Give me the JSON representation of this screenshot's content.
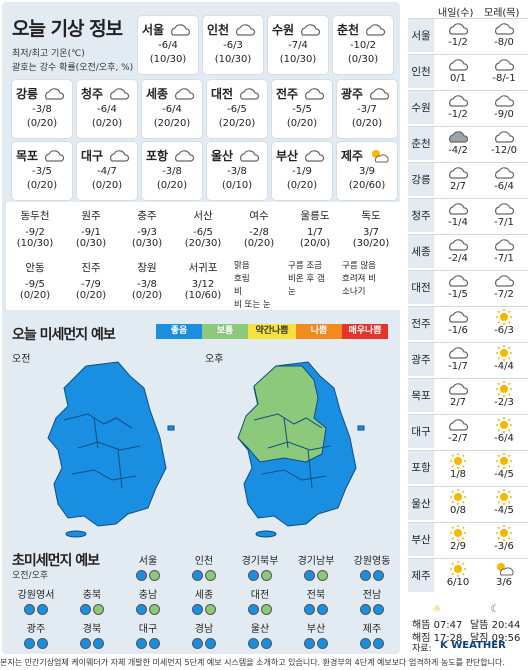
{
  "header": {
    "title": "오늘 기상 정보",
    "sub1": "최저/최고 기온(℃)",
    "sub2": "괄호는 강수 확률(오전/오후, %)"
  },
  "top_cities": [
    {
      "name": "서울",
      "temp": "-6/4",
      "pct": "(10/30)",
      "icon": "cloud"
    },
    {
      "name": "인천",
      "temp": "-6/3",
      "pct": "(10/30)",
      "icon": "cloud"
    },
    {
      "name": "수원",
      "temp": "-7/4",
      "pct": "(10/30)",
      "icon": "cloud"
    },
    {
      "name": "춘천",
      "temp": "-10/2",
      "pct": "(0/30)",
      "icon": "cloud"
    },
    {
      "name": "강릉",
      "temp": "-3/8",
      "pct": "(0/20)",
      "icon": "cloud"
    },
    {
      "name": "청주",
      "temp": "-6/4",
      "pct": "(0/20)",
      "icon": "cloud"
    },
    {
      "name": "세종",
      "temp": "-6/4",
      "pct": "(20/20)",
      "icon": "cloud"
    },
    {
      "name": "대전",
      "temp": "-6/5",
      "pct": "(20/20)",
      "icon": "cloud"
    },
    {
      "name": "전주",
      "temp": "-5/5",
      "pct": "(0/20)",
      "icon": "cloud"
    },
    {
      "name": "광주",
      "temp": "-3/7",
      "pct": "(0/20)",
      "icon": "cloud"
    },
    {
      "name": "목포",
      "temp": "-3/5",
      "pct": "(0/20)",
      "icon": "cloud"
    },
    {
      "name": "대구",
      "temp": "-4/7",
      "pct": "(0/20)",
      "icon": "cloud"
    },
    {
      "name": "포항",
      "temp": "-3/8",
      "pct": "(0/20)",
      "icon": "cloud"
    },
    {
      "name": "울산",
      "temp": "-3/8",
      "pct": "(0/10)",
      "icon": "cloud"
    },
    {
      "name": "부산",
      "temp": "-1/9",
      "pct": "(0/20)",
      "icon": "cloud"
    },
    {
      "name": "제주",
      "temp": "3/9",
      "pct": "(20/60)",
      "icon": "sun-cloud-rain"
    }
  ],
  "mid_row1": [
    {
      "name": "동두천",
      "temp": "-9/2",
      "pct": "(10/30)"
    },
    {
      "name": "원주",
      "temp": "-9/1",
      "pct": "(0/30)"
    },
    {
      "name": "충주",
      "temp": "-9/3",
      "pct": "(0/30)"
    },
    {
      "name": "서산",
      "temp": "-6/5",
      "pct": "(20/30)"
    },
    {
      "name": "여수",
      "temp": "-2/8",
      "pct": "(0/20)"
    },
    {
      "name": "울릉도",
      "temp": "1/7",
      "pct": "(20/0)"
    },
    {
      "name": "독도",
      "temp": "3/7",
      "pct": "(30/20)"
    }
  ],
  "mid_row2": [
    {
      "name": "안동",
      "temp": "-9/5",
      "pct": "(0/20)"
    },
    {
      "name": "진주",
      "temp": "-7/9",
      "pct": "(0/20)"
    },
    {
      "name": "창원",
      "temp": "-3/8",
      "pct": "(0/20)"
    },
    {
      "name": "서귀포",
      "temp": "3/12",
      "pct": "(10/60)"
    }
  ],
  "wx_legend": [
    "맑음",
    "구름 조금",
    "구름 많음",
    "흐림",
    "비온 후 갬",
    "흐려져 비",
    "비",
    "눈",
    "소나기",
    "비 또는 눈"
  ],
  "dust": {
    "title": "오늘 미세먼지 예보",
    "am": "오전",
    "pm": "오후"
  },
  "dust_levels": [
    {
      "label": "좋음",
      "color": "#1a8ee0"
    },
    {
      "label": "보통",
      "color": "#8cc97a"
    },
    {
      "label": "약간나쁨",
      "color": "#f6e23a"
    },
    {
      "label": "나쁨",
      "color": "#f28a1e"
    },
    {
      "label": "매우나쁨",
      "color": "#e4352b"
    }
  ],
  "ultra": {
    "title": "초미세먼지 예보",
    "sub": "오전/오후"
  },
  "ultra_rows": [
    [
      {
        "name": "서울",
        "am": "g",
        "pm": "m"
      },
      {
        "name": "인천",
        "am": "g",
        "pm": "m"
      },
      {
        "name": "경기북부",
        "am": "g",
        "pm": "m"
      },
      {
        "name": "경기남부",
        "am": "g",
        "pm": "m"
      },
      {
        "name": "강원영동",
        "am": "g",
        "pm": "g"
      }
    ],
    [
      {
        "name": "강원영서",
        "am": "g",
        "pm": "g"
      },
      {
        "name": "충북",
        "am": "g",
        "pm": "m"
      },
      {
        "name": "충남",
        "am": "g",
        "pm": "m"
      },
      {
        "name": "세종",
        "am": "g",
        "pm": "m"
      },
      {
        "name": "대전",
        "am": "g",
        "pm": "m"
      },
      {
        "name": "전북",
        "am": "g",
        "pm": "g"
      },
      {
        "name": "전남",
        "am": "g",
        "pm": "g"
      }
    ],
    [
      {
        "name": "광주",
        "am": "g",
        "pm": "g"
      },
      {
        "name": "경북",
        "am": "g",
        "pm": "g"
      },
      {
        "name": "대구",
        "am": "g",
        "pm": "g"
      },
      {
        "name": "경남",
        "am": "g",
        "pm": "g"
      },
      {
        "name": "울산",
        "am": "g",
        "pm": "g"
      },
      {
        "name": "부산",
        "am": "g",
        "pm": "g"
      },
      {
        "name": "제주",
        "am": "g",
        "pm": "g"
      }
    ]
  ],
  "forecast": {
    "h1": "내일(수)",
    "h2": "모레(목)"
  },
  "forecast_rows": [
    {
      "city": "서울",
      "d1": "-1/2",
      "d2": "-8/0",
      "i1": "cloud",
      "i2": "cloud"
    },
    {
      "city": "인천",
      "d1": "0/1",
      "d2": "-8/-1",
      "i1": "cloud",
      "i2": "cloud"
    },
    {
      "city": "수원",
      "d1": "-1/2",
      "d2": "-9/0",
      "i1": "cloud",
      "i2": "cloud"
    },
    {
      "city": "춘천",
      "d1": "-4/2",
      "d2": "-12/0",
      "i1": "dark",
      "i2": "cloud"
    },
    {
      "city": "강릉",
      "d1": "2/7",
      "d2": "-6/4",
      "i1": "cloud",
      "i2": "cloud"
    },
    {
      "city": "청주",
      "d1": "-1/4",
      "d2": "-7/1",
      "i1": "cloud",
      "i2": "cloud"
    },
    {
      "city": "세종",
      "d1": "-2/4",
      "d2": "-7/1",
      "i1": "cloud",
      "i2": "cloud"
    },
    {
      "city": "대전",
      "d1": "-1/5",
      "d2": "-7/2",
      "i1": "cloud",
      "i2": "cloud"
    },
    {
      "city": "전주",
      "d1": "-1/6",
      "d2": "-6/3",
      "i1": "cloud",
      "i2": "sun"
    },
    {
      "city": "광주",
      "d1": "-1/7",
      "d2": "-4/4",
      "i1": "cloud",
      "i2": "sun"
    },
    {
      "city": "목포",
      "d1": "2/7",
      "d2": "-2/3",
      "i1": "cloud",
      "i2": "sun"
    },
    {
      "city": "대구",
      "d1": "-2/7",
      "d2": "-6/4",
      "i1": "cloud",
      "i2": "sun"
    },
    {
      "city": "포항",
      "d1": "1/8",
      "d2": "-4/5",
      "i1": "sun",
      "i2": "sun"
    },
    {
      "city": "울산",
      "d1": "0/8",
      "d2": "-4/5",
      "i1": "sun",
      "i2": "sun"
    },
    {
      "city": "부산",
      "d1": "2/9",
      "d2": "-3/6",
      "i1": "sun",
      "i2": "sun"
    },
    {
      "city": "제주",
      "d1": "6/10",
      "d2": "3/6",
      "i1": "sun",
      "i2": "suncloud"
    }
  ],
  "source": "자료: ",
  "brand": "K WEATHER",
  "sun": {
    "rise": "해뜸 07:47",
    "set": "해짐 17:28",
    "moonrise": "달뜸 20:44",
    "moonset": "달짐 09:56"
  },
  "footer": "본지는 민간기상업체 케이웨더가 자체 개발한 미세먼지 5단계 예보 시스템을 소개하고 있습니다. 환경부의 4단계 예보보다 엄격하게 농도를 판단합니다."
}
